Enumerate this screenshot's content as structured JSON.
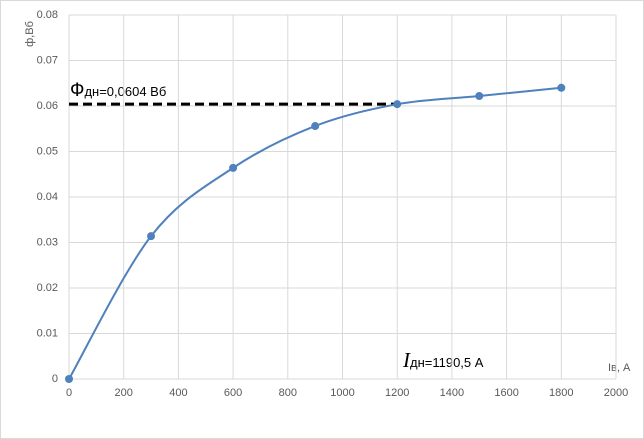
{
  "chart_data": {
    "type": "line",
    "x": [
      0,
      300,
      600,
      900,
      1200,
      1500,
      1800
    ],
    "series": [
      {
        "color": "#4f81bd",
        "values": [
          0,
          0.0314,
          0.0464,
          0.0556,
          0.0604,
          0.0622,
          0.064
        ]
      }
    ],
    "xlim": [
      0,
      2000
    ],
    "xticks": [
      0,
      200,
      400,
      600,
      800,
      1000,
      1200,
      1400,
      1600,
      1800,
      2000
    ],
    "ylim": [
      0,
      0.08
    ],
    "yticks": [
      0,
      0.01,
      0.02,
      0.03,
      0.04,
      0.05,
      0.06,
      0.07,
      0.08
    ],
    "grid": true,
    "smooth": true,
    "y_label": "ф,Вб",
    "x_label": "Iв, А",
    "reference_line": {
      "x_end": 1190.5,
      "y": 0.0604
    },
    "annotations": [
      {
        "symbol": "Ф",
        "text": "дн=0,0604 Вб"
      },
      {
        "symbol": "I",
        "text": "дн=1190,5 А"
      }
    ]
  }
}
